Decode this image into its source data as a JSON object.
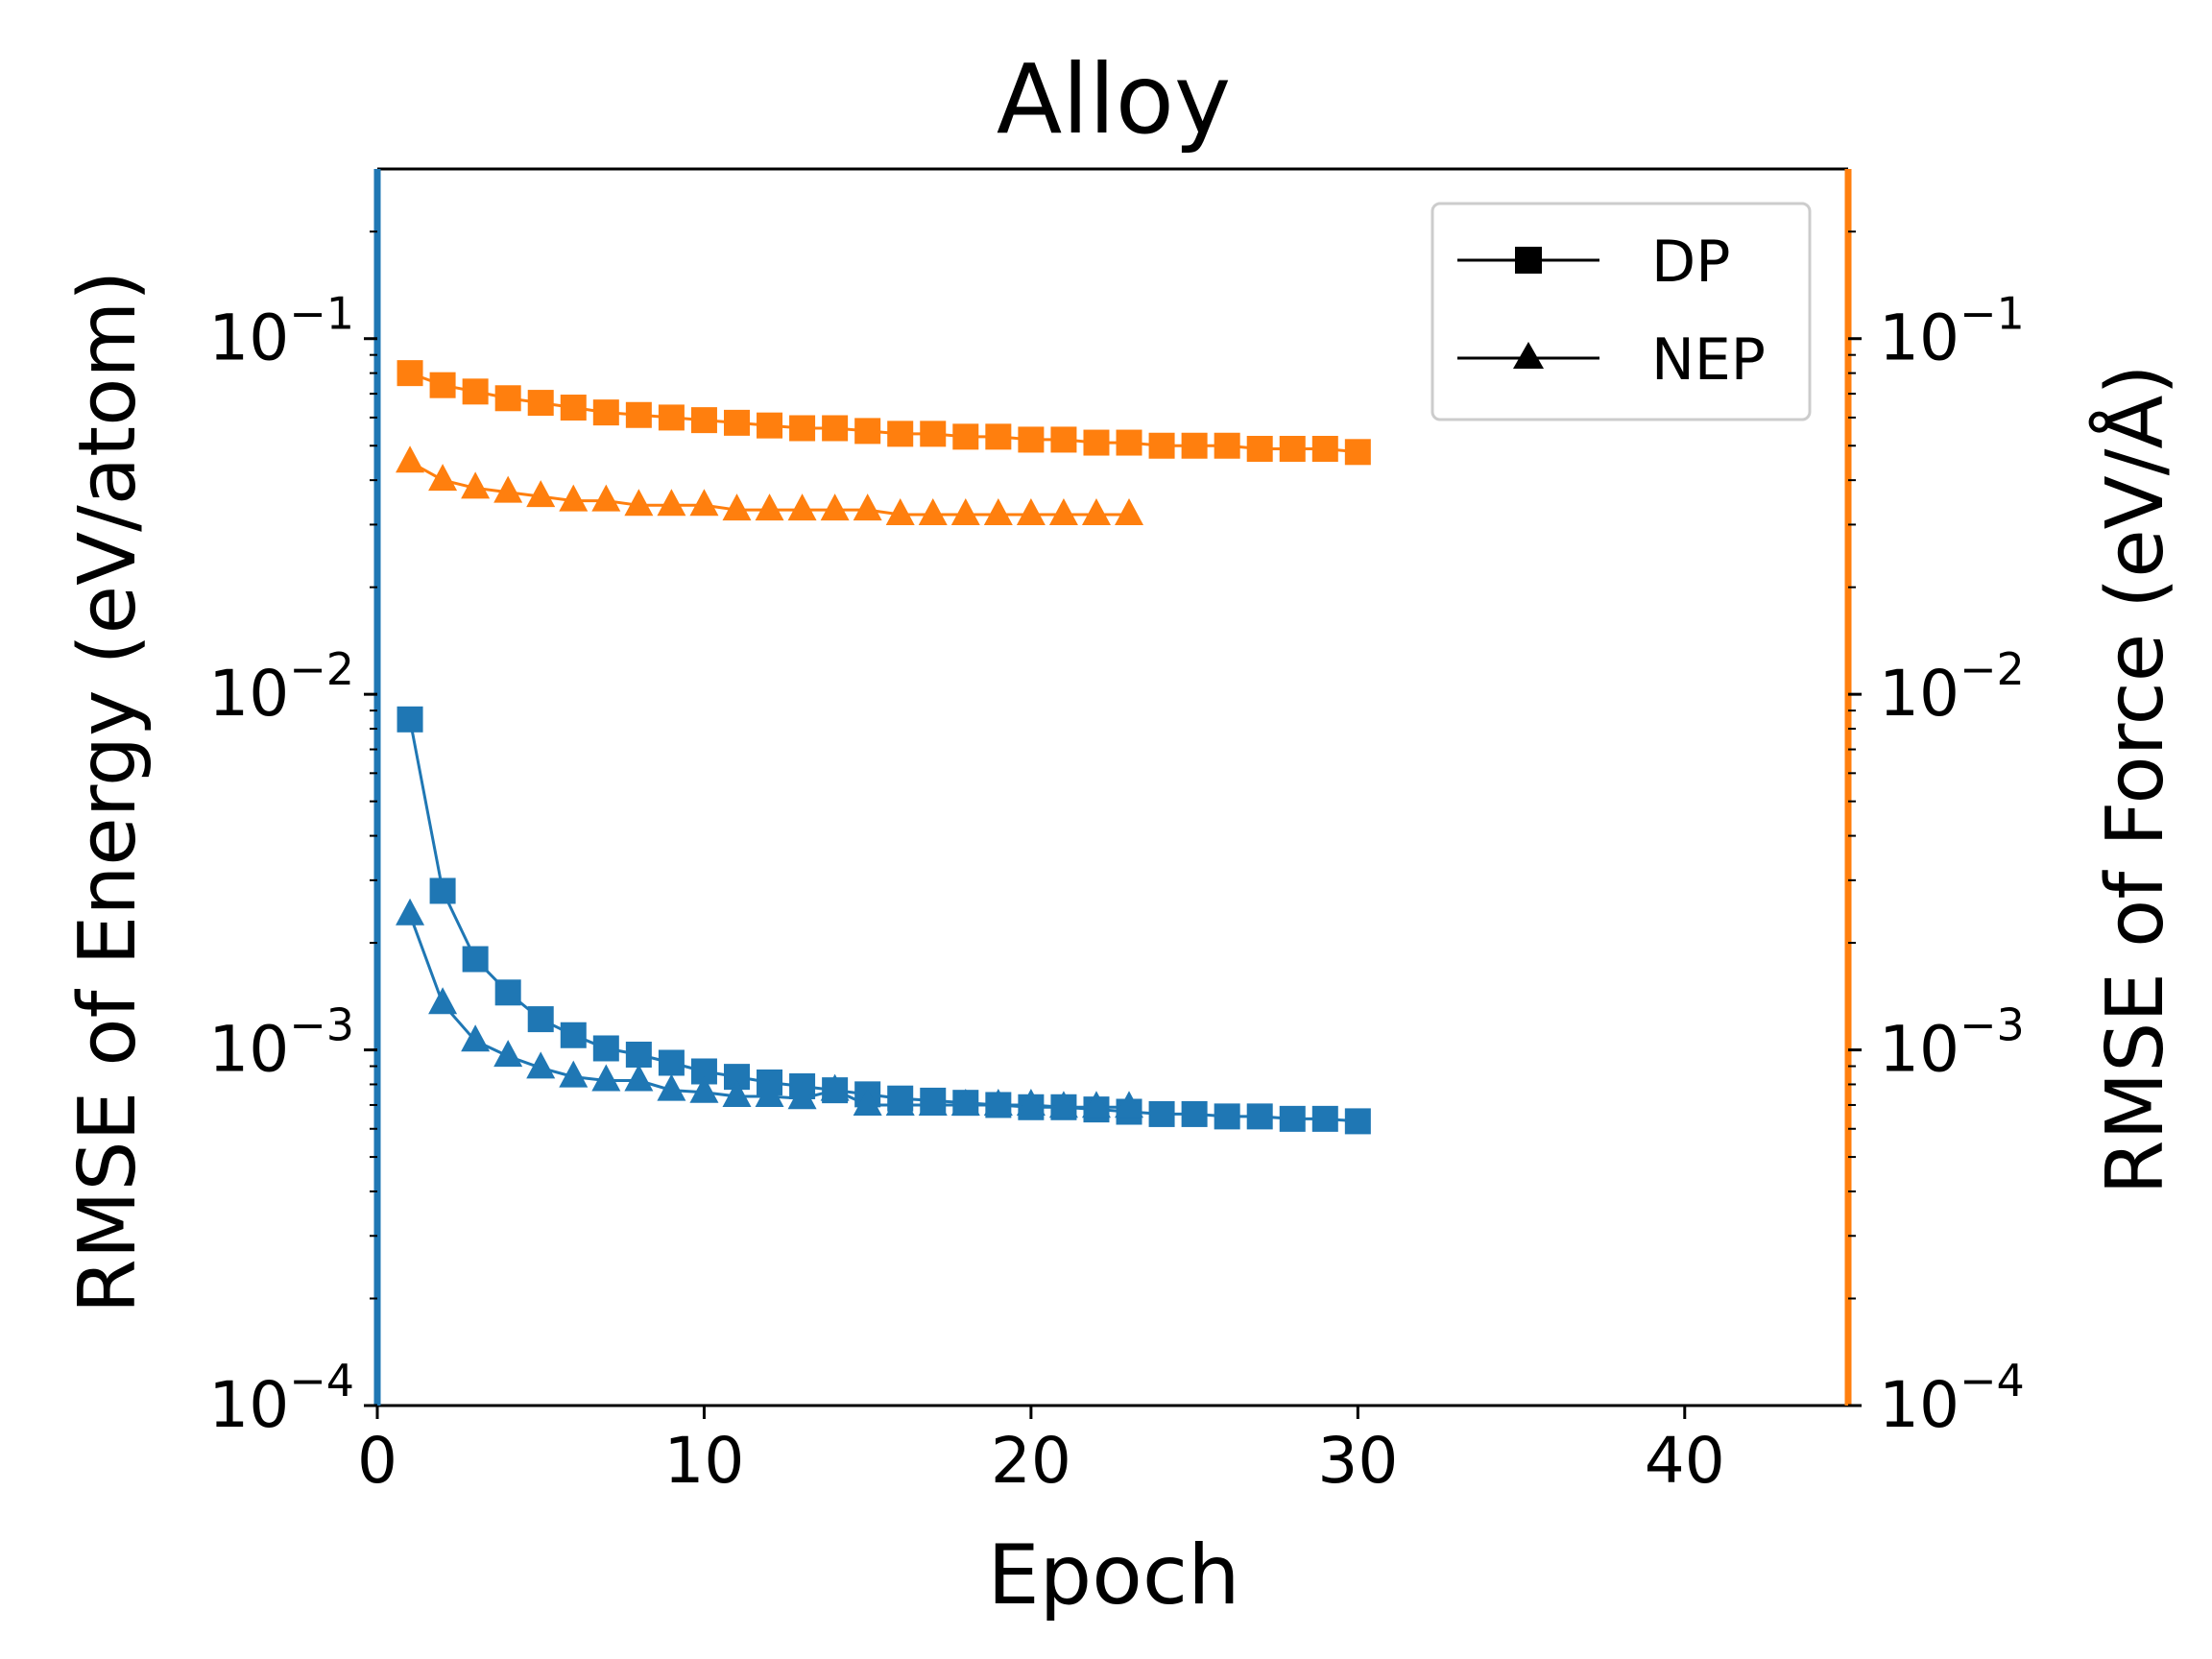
{
  "colors": {
    "energy": "#1f77b4",
    "force": "#ff7f0e",
    "legend_marker": "#000000",
    "legend_border": "#cccccc"
  },
  "chart_data": {
    "type": "line",
    "title": "Alloy",
    "xlabel": "Epoch",
    "ylabel_left": "RMSE of Energy (eV/atom)",
    "ylabel_right": "RMSE of Force (eV/Å)",
    "xlim": [
      0,
      45
    ],
    "xticks": [
      "0",
      "10",
      "20",
      "30",
      "40"
    ],
    "xtick_values": [
      0,
      10,
      20,
      30,
      40
    ],
    "ylim_left": [
      0.0001,
      0.3
    ],
    "ylim_right": [
      0.0001,
      0.3
    ],
    "yscale": "log",
    "ytick_values": [
      0.0001,
      0.001,
      0.01,
      0.1
    ],
    "ytick_exponents": [
      "−4",
      "−3",
      "−2",
      "−1"
    ],
    "ytick_base": "10",
    "grid": false,
    "legend_position": "top-right",
    "legend": [
      {
        "label": "DP",
        "marker": "square"
      },
      {
        "label": "NEP",
        "marker": "triangle"
      }
    ],
    "series": [
      {
        "model": "DP",
        "quantity": "energy",
        "axis": "left",
        "marker": "square",
        "color": "#1f77b4",
        "x": [
          1,
          2,
          3,
          4,
          5,
          6,
          7,
          8,
          9,
          10,
          11,
          12,
          13,
          14,
          15,
          16,
          17,
          18,
          19,
          20,
          21,
          22,
          23,
          24,
          25,
          26,
          27,
          28,
          29,
          30
        ],
        "y": [
          0.0085,
          0.0028,
          0.0018,
          0.00145,
          0.00122,
          0.0011,
          0.00101,
          0.00097,
          0.00092,
          0.00087,
          0.00084,
          0.00081,
          0.00079,
          0.00077,
          0.00075,
          0.00073,
          0.00072,
          0.00071,
          0.0007,
          0.00069,
          0.00069,
          0.00068,
          0.00067,
          0.00066,
          0.00066,
          0.00065,
          0.00065,
          0.00064,
          0.00064,
          0.00063
        ]
      },
      {
        "model": "NEP",
        "quantity": "energy",
        "axis": "left",
        "marker": "triangle",
        "color": "#1f77b4",
        "x": [
          1,
          2,
          3,
          4,
          5,
          6,
          7,
          8,
          9,
          10,
          11,
          12,
          13,
          14,
          15,
          16,
          17,
          18,
          19,
          20,
          21,
          22,
          23
        ],
        "y": [
          0.0024,
          0.00135,
          0.00106,
          0.00096,
          0.00089,
          0.00084,
          0.00082,
          0.00082,
          0.00077,
          0.00076,
          0.00074,
          0.00074,
          0.00073,
          0.00077,
          0.0007,
          0.0007,
          0.0007,
          0.0007,
          0.0007,
          0.0007,
          0.00069,
          0.00069,
          0.00069
        ]
      },
      {
        "model": "DP",
        "quantity": "force",
        "axis": "right",
        "marker": "square",
        "color": "#ff7f0e",
        "x": [
          1,
          2,
          3,
          4,
          5,
          6,
          7,
          8,
          9,
          10,
          11,
          12,
          13,
          14,
          15,
          16,
          17,
          18,
          19,
          20,
          21,
          22,
          23,
          24,
          25,
          26,
          27,
          28,
          29,
          30
        ],
        "y": [
          0.08,
          0.074,
          0.071,
          0.068,
          0.066,
          0.064,
          0.062,
          0.061,
          0.06,
          0.059,
          0.058,
          0.057,
          0.056,
          0.056,
          0.055,
          0.054,
          0.054,
          0.053,
          0.053,
          0.052,
          0.052,
          0.051,
          0.051,
          0.05,
          0.05,
          0.05,
          0.049,
          0.049,
          0.049,
          0.048
        ]
      },
      {
        "model": "NEP",
        "quantity": "force",
        "axis": "right",
        "marker": "triangle",
        "color": "#ff7f0e",
        "x": [
          1,
          2,
          3,
          4,
          5,
          6,
          7,
          8,
          9,
          10,
          11,
          12,
          13,
          14,
          15,
          16,
          17,
          18,
          19,
          20,
          21,
          22,
          23
        ],
        "y": [
          0.045,
          0.04,
          0.038,
          0.037,
          0.036,
          0.035,
          0.035,
          0.034,
          0.034,
          0.034,
          0.033,
          0.033,
          0.033,
          0.033,
          0.033,
          0.032,
          0.032,
          0.032,
          0.032,
          0.032,
          0.032,
          0.032,
          0.032
        ]
      }
    ]
  }
}
